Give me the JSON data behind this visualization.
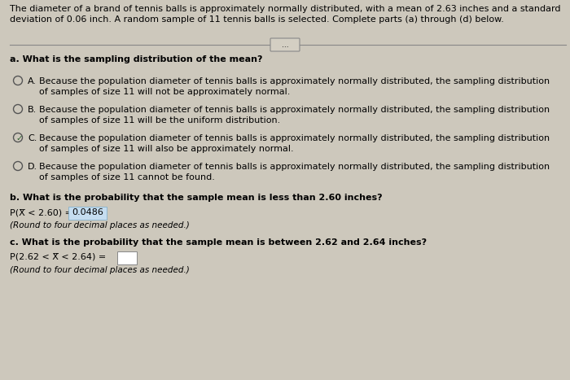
{
  "background_color": "#cdc8bc",
  "header_line1": "The diameter of a brand of tennis balls is approximately normally distributed, with a mean of 2.63 inches and a standard",
  "header_line2": "deviation of 0.06 inch. A random sample of 11 tennis balls is selected. Complete parts (a) through (d) below.",
  "section_a_label": "a. What is the sampling distribution of the mean?",
  "options": [
    {
      "letter": "A.",
      "text1": "Because the population diameter of tennis balls is approximately normally distributed, the sampling distribution",
      "text2": "of samples of size 11 will not be approximately normal.",
      "selected": false
    },
    {
      "letter": "B.",
      "text1": "Because the population diameter of tennis balls is approximately normally distributed, the sampling distribution",
      "text2": "of samples of size 11 will be the uniform distribution.",
      "selected": false
    },
    {
      "letter": "C.",
      "text1": "Because the population diameter of tennis balls is approximately normally distributed, the sampling distribution",
      "text2": "of samples of size 11 will also be approximately normal.",
      "selected": true
    },
    {
      "letter": "D.",
      "text1": "Because the population diameter of tennis balls is approximately normally distributed, the sampling distribution",
      "text2": "of samples of size 11 cannot be found.",
      "selected": false
    }
  ],
  "section_b_label": "b. What is the probability that the sample mean is less than 2.60 inches?",
  "prob_b_formula": "P(X̅ < 2.60) = ",
  "prob_b_value": "0.0486",
  "prob_b_note": "(Round to four decimal places as needed.)",
  "section_c_label": "c. What is the probability that the sample mean is between 2.62 and 2.64 inches?",
  "prob_c_formula": "P(2.62 < X̅ < 2.64) =",
  "prob_c_note": "(Round to four decimal places as needed.)",
  "divider_button_text": "..."
}
